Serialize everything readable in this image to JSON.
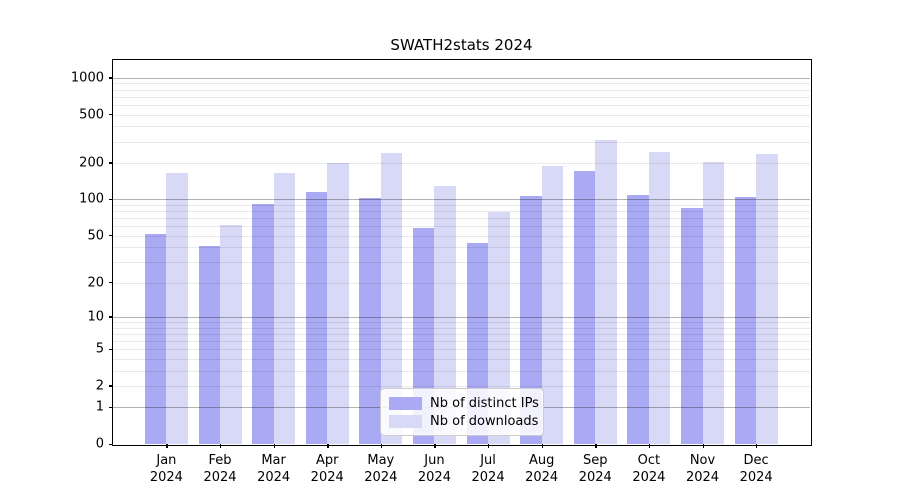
{
  "figure": {
    "background": "#ffffff"
  },
  "chart_data": {
    "type": "bar",
    "title": "SWATH2stats 2024",
    "categories": [
      "Jan 2024",
      "Feb 2024",
      "Mar 2024",
      "Apr 2024",
      "May 2024",
      "Jun 2024",
      "Jul 2024",
      "Aug 2024",
      "Sep 2024",
      "Oct 2024",
      "Nov 2024",
      "Dec 2024"
    ],
    "series": [
      {
        "name": "Nb of distinct IPs",
        "color": "#a9a9f4",
        "values": [
          52,
          41,
          91,
          115,
          102,
          58,
          43,
          106,
          170,
          108,
          85,
          105
        ]
      },
      {
        "name": "Nb of downloads",
        "color": "#d8d8f7",
        "values": [
          164,
          61,
          164,
          200,
          243,
          128,
          78,
          188,
          307,
          245,
          203,
          238
        ]
      }
    ],
    "y_scale": "log1p",
    "y_ticks": [
      0,
      1,
      2,
      5,
      10,
      20,
      50,
      100,
      200,
      500,
      1000
    ],
    "ylim": [
      0,
      1400
    ],
    "grid": {
      "on": true,
      "major_ticks": [
        1,
        10,
        100,
        1000
      ],
      "major_color": "#b3b3b3",
      "minor_color": "#e9e9e9"
    },
    "legend": {
      "position": "lower center"
    },
    "axis_color": "#000000",
    "xlabel": "",
    "ylabel": ""
  }
}
